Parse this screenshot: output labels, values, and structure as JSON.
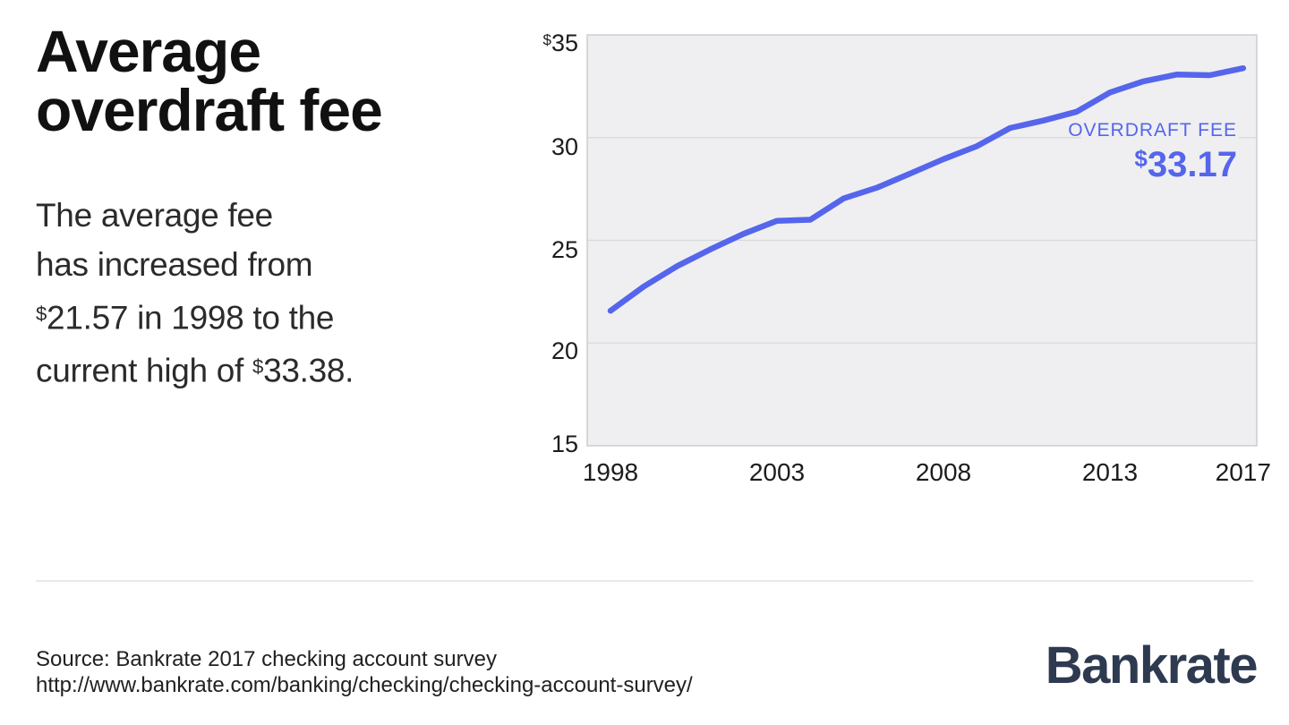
{
  "header": {
    "title_line1": "Average",
    "title_line2": "overdraft fee",
    "subtitle_lines": [
      "The average fee",
      "has increased from",
      "$21.57 in 1998 to the",
      "current high of $33.38."
    ]
  },
  "chart_data": {
    "type": "line",
    "x": [
      1998,
      1999,
      2000,
      2001,
      2002,
      2003,
      2004,
      2005,
      2006,
      2007,
      2008,
      2009,
      2010,
      2011,
      2012,
      2013,
      2014,
      2015,
      2016,
      2017
    ],
    "series": [
      {
        "name": "Overdraft fee",
        "values": [
          21.57,
          22.75,
          23.74,
          24.56,
          25.32,
          25.95,
          26.0,
          27.04,
          27.56,
          28.25,
          28.95,
          29.58,
          30.47,
          30.83,
          31.26,
          32.2,
          32.74,
          33.07,
          33.04,
          33.38
        ]
      }
    ],
    "xlim": [
      1998,
      2017
    ],
    "ylim": [
      15,
      35
    ],
    "xticks": [
      1998,
      2003,
      2008,
      2013,
      2017
    ],
    "ytick_labels": [
      "$35",
      "30",
      "25",
      "20",
      "15"
    ],
    "ytick_values": [
      35,
      30,
      25,
      20,
      15
    ],
    "grid": "horizontal",
    "legend_position": "inside-right",
    "annotation_label": "OVERDRAFT FEE",
    "annotation_value": "$33.17",
    "line_color": "#5565EC",
    "plot_bg": "#EFEFF1",
    "grid_color": "#D9D9DC",
    "plot_border_color": "#C7C7CC",
    "tick_color": "#1C1C1C"
  },
  "footer": {
    "source_line1": "Source: Bankrate 2017 checking account survey",
    "source_line2": "http://www.bankrate.com/banking/checking/checking-account-survey/",
    "logo_text": "Bankrate",
    "logo_color": "#2E3A50"
  }
}
